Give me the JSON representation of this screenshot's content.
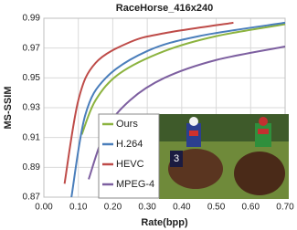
{
  "chart_data": {
    "type": "line",
    "title": "RaceHorse_416x240",
    "x_label": "Rate(bpp)",
    "y_label": "MS-SSIM",
    "xlim": [
      0,
      0.7
    ],
    "ylim": [
      0.87,
      0.99
    ],
    "xticks": [
      {
        "value": 0,
        "label": "0.00"
      },
      {
        "value": 0.1,
        "label": "0.10"
      },
      {
        "value": 0.2,
        "label": "0.20"
      },
      {
        "value": 0.3,
        "label": "0.30"
      },
      {
        "value": 0.4,
        "label": "0.40"
      },
      {
        "value": 0.5,
        "label": "0.50"
      },
      {
        "value": 0.6,
        "label": "0.60"
      },
      {
        "value": 0.7,
        "label": "0.70"
      }
    ],
    "yticks": [
      0.87,
      0.89,
      0.91,
      0.93,
      0.95,
      0.97,
      0.99
    ],
    "grid": true,
    "legend": "lower-left",
    "series": [
      {
        "name": "Ours",
        "color": "#8cb33f",
        "x": [
          0.11,
          0.15,
          0.22,
          0.35,
          0.5,
          0.7
        ],
        "values": [
          0.912,
          0.935,
          0.953,
          0.968,
          0.978,
          0.986
        ]
      },
      {
        "name": "H.264",
        "color": "#4a7ebb",
        "x": [
          0.08,
          0.12,
          0.18,
          0.3,
          0.45,
          0.7
        ],
        "values": [
          0.87,
          0.925,
          0.95,
          0.968,
          0.978,
          0.987
        ]
      },
      {
        "name": "HEVC",
        "color": "#be4b48",
        "x": [
          0.06,
          0.1,
          0.15,
          0.25,
          0.35,
          0.55
        ],
        "values": [
          0.879,
          0.935,
          0.96,
          0.974,
          0.98,
          0.987
        ]
      },
      {
        "name": "MPEG-4",
        "color": "#7d5fa0",
        "x": [
          0.13,
          0.18,
          0.25,
          0.35,
          0.5,
          0.7
        ],
        "values": [
          0.882,
          0.915,
          0.935,
          0.95,
          0.962,
          0.971
        ]
      }
    ]
  }
}
